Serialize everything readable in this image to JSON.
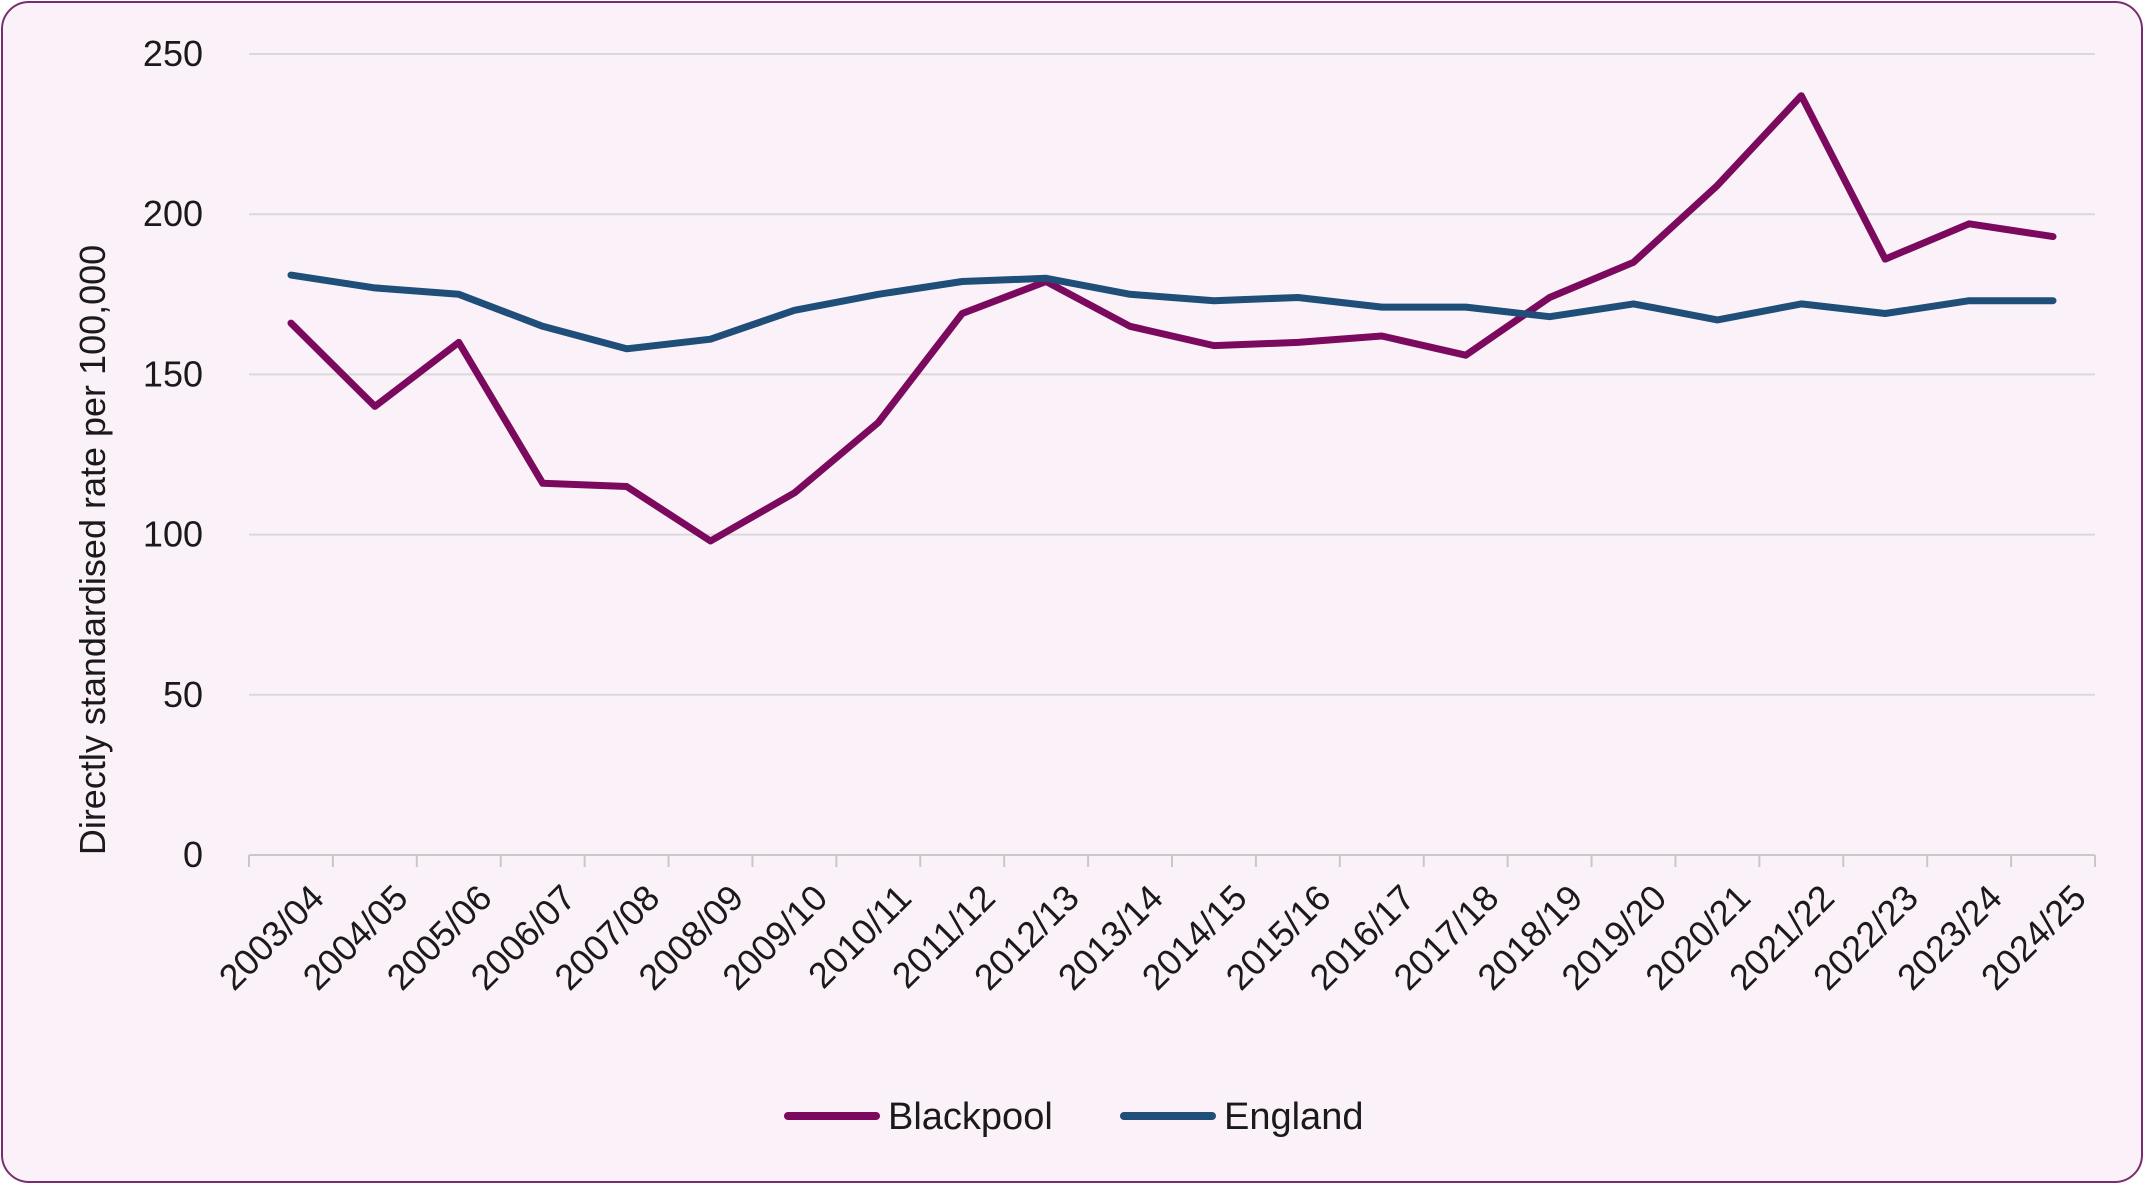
{
  "chart_data": {
    "type": "line",
    "title": "",
    "xlabel": "",
    "ylabel": "Directly standardised rate per 100,000",
    "ylim": [
      0,
      250
    ],
    "yticks": [
      0,
      50,
      100,
      150,
      200,
      250
    ],
    "grid": true,
    "legend_position": "bottom",
    "categories": [
      "2003/04",
      "2004/05",
      "2005/06",
      "2006/07",
      "2007/08",
      "2008/09",
      "2009/10",
      "2010/11",
      "2011/12",
      "2012/13",
      "2013/14",
      "2014/15",
      "2015/16",
      "2016/17",
      "2017/18",
      "2018/19",
      "2019/20",
      "2020/21",
      "2021/22",
      "2022/23",
      "2023/24",
      "2024/25"
    ],
    "series": [
      {
        "name": "Blackpool",
        "color": "#7b0a5e",
        "values": [
          166,
          140,
          160,
          116,
          115,
          98,
          113,
          135,
          169,
          179,
          165,
          159,
          160,
          162,
          156,
          174,
          185,
          209,
          237,
          186,
          197,
          193
        ]
      },
      {
        "name": "England",
        "color": "#1f4e79",
        "values": [
          181,
          177,
          175,
          165,
          158,
          161,
          170,
          175,
          179,
          180,
          175,
          173,
          174,
          171,
          171,
          168,
          172,
          167,
          172,
          169,
          173,
          173
        ]
      }
    ]
  },
  "colors": {
    "border": "#7a2d6e",
    "background": "#fbf1f8",
    "gridline": "#d9d9d9"
  }
}
